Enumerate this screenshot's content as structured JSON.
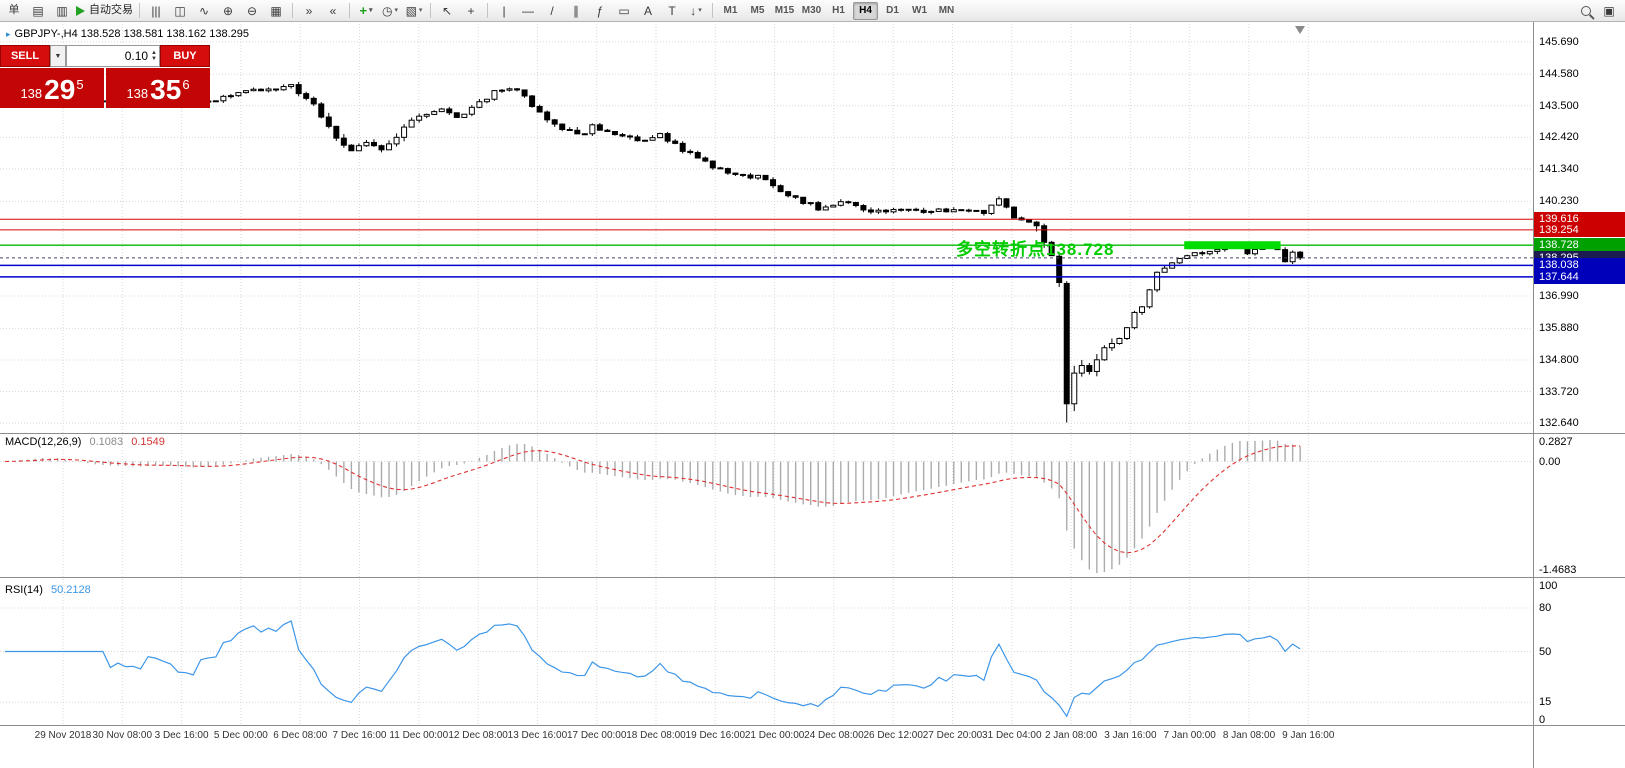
{
  "toolbar": {
    "groups": [
      {
        "items": [
          {
            "name": "new-order-button",
            "label": "单",
            "style": "text-btn"
          },
          {
            "name": "chart-window-icon",
            "glyph": "▤"
          },
          {
            "name": "profiles-icon",
            "glyph": "▥"
          },
          {
            "name": "autotrading-button",
            "label": "自动交易",
            "style": "autotrade"
          }
        ]
      },
      {
        "items": [
          {
            "name": "bar-chart-icon",
            "glyph": "|||"
          },
          {
            "name": "candlestick-chart-icon",
            "glyph": "◫"
          },
          {
            "name": "line-chart-icon",
            "glyph": "∿"
          },
          {
            "name": "zoom-in-icon",
            "glyph": "⊕"
          },
          {
            "name": "zoom-out-icon",
            "glyph": "⊖"
          },
          {
            "name": "tile-windows-icon",
            "glyph": "▦"
          }
        ]
      },
      {
        "items": [
          {
            "name": "auto-scroll-icon",
            "glyph": "»"
          },
          {
            "name": "chart-shift-icon",
            "glyph": "«"
          }
        ]
      },
      {
        "items": [
          {
            "name": "indicators-button",
            "glyph": "+",
            "style": "green",
            "caret": true
          },
          {
            "name": "periods-button",
            "glyph": "◷",
            "caret": true
          },
          {
            "name": "templates-button",
            "glyph": "▧",
            "caret": true
          }
        ]
      },
      {
        "items": [
          {
            "name": "cursor-icon",
            "glyph": "↖"
          },
          {
            "name": "crosshair-icon",
            "glyph": "+"
          }
        ]
      },
      {
        "items": [
          {
            "name": "vertical-line-icon",
            "glyph": "|"
          },
          {
            "name": "horizontal-line-icon",
            "glyph": "—"
          },
          {
            "name": "trendline-icon",
            "glyph": "/"
          },
          {
            "name": "equidistant-channel-icon",
            "glyph": "∥"
          },
          {
            "name": "fibonacci-icon",
            "glyph": "ƒ"
          },
          {
            "name": "shapes-icon",
            "glyph": "▭"
          },
          {
            "name": "text-icon",
            "glyph": "A"
          },
          {
            "name": "text-label-icon",
            "glyph": "T"
          },
          {
            "name": "arrows-icon",
            "glyph": "↓",
            "caret": true
          }
        ]
      },
      {
        "items": [
          {
            "name": "timeframe-m1-button",
            "label": "M1",
            "style": "tf"
          },
          {
            "name": "timeframe-m5-button",
            "label": "M5",
            "style": "tf"
          },
          {
            "name": "timeframe-m15-button",
            "label": "M15",
            "style": "tf"
          },
          {
            "name": "timeframe-m30-button",
            "label": "M30",
            "style": "tf"
          },
          {
            "name": "timeframe-h1-button",
            "label": "H1",
            "style": "tf"
          },
          {
            "name": "timeframe-h4-button",
            "label": "H4",
            "style": "tf",
            "active": true
          },
          {
            "name": "timeframe-d1-button",
            "label": "D1",
            "style": "tf"
          },
          {
            "name": "timeframe-w1-button",
            "label": "W1",
            "style": "tf"
          },
          {
            "name": "timeframe-mn-button",
            "label": "MN",
            "style": "tf"
          }
        ]
      }
    ],
    "right_items": [
      {
        "name": "search-icon",
        "magnifier": true
      },
      {
        "name": "data-window-icon",
        "glyph": "▣"
      }
    ]
  },
  "symbol_line": {
    "text": "GBPJPY-,H4  138.528 138.581 138.162 138.295"
  },
  "trade_panel": {
    "sell_label": "SELL",
    "buy_label": "BUY",
    "lot": "0.10",
    "sell_big": "138",
    "sell_pips": "29",
    "sell_sup": "5",
    "buy_big": "138",
    "buy_pips": "35",
    "buy_sup": "6"
  },
  "annotation": {
    "text": "多空转折点138.728",
    "color": "#00cc00"
  },
  "macd": {
    "name": "MACD(12,26,9)",
    "value_main": "0.1083",
    "value_signal": "0.1549",
    "axis": [
      "0.2827",
      "0.00",
      "-1.4683"
    ]
  },
  "rsi": {
    "name": "RSI(14)",
    "value": "50.2128",
    "axis": [
      "100",
      "80",
      "50",
      "15",
      "0"
    ]
  },
  "price_axis": {
    "gridlines": [
      "145.690",
      "144.580",
      "143.500",
      "142.420",
      "141.340",
      "140.230",
      "136.990",
      "135.880",
      "134.800",
      "133.720",
      "132.640"
    ],
    "tags": [
      {
        "label": "139.616",
        "price": 139.616,
        "bg": "#cc0000"
      },
      {
        "label": "139.254",
        "price": 139.254,
        "bg": "#cc0000"
      },
      {
        "label": "138.728",
        "price": 138.728,
        "bg": "#00a000"
      },
      {
        "label": "138.295",
        "price": 138.295,
        "bg": "#1c1c50"
      },
      {
        "label": "138.038",
        "price": 138.038,
        "bg": "#0000bb"
      },
      {
        "label": "137.644",
        "price": 137.644,
        "bg": "#0000bb"
      }
    ]
  },
  "time_axis": {
    "labels": [
      "29 Nov 2018",
      "30 Nov 08:00",
      "3 Dec 16:00",
      "5 Dec 00:00",
      "6 Dec 08:00",
      "7 Dec 16:00",
      "11 Dec 00:00",
      "12 Dec 08:00",
      "13 Dec 16:00",
      "17 Dec 00:00",
      "18 Dec 08:00",
      "19 Dec 16:00",
      "21 Dec 00:00",
      "24 Dec 08:00",
      "26 Dec 12:00",
      "27 Dec 20:00",
      "31 Dec 04:00",
      "2 Jan 08:00",
      "3 Jan 16:00",
      "7 Jan 00:00",
      "8 Jan 08:00",
      "9 Jan 16:00"
    ]
  },
  "chart_data": {
    "type": "candlestick",
    "symbol": "GBPJPY-",
    "timeframe": "H4",
    "ohlc": {
      "open": 138.528,
      "high": 138.581,
      "low": 138.162,
      "close": 138.295
    },
    "seed": 20190109,
    "candle_count": 173,
    "price_top": 146.3,
    "price_bottom": 132.3,
    "anchors": [
      [
        0,
        143.9
      ],
      [
        5,
        144.1
      ],
      [
        9,
        143.8
      ],
      [
        13,
        143.6
      ],
      [
        17,
        143.7
      ],
      [
        21,
        143.75
      ],
      [
        24,
        143.55
      ],
      [
        27,
        143.65
      ],
      [
        31,
        143.9
      ],
      [
        35,
        144.1
      ],
      [
        38,
        144.15
      ],
      [
        41,
        143.6
      ],
      [
        44,
        142.4
      ],
      [
        46,
        142.0
      ],
      [
        48,
        142.35
      ],
      [
        50,
        141.9
      ],
      [
        52,
        142.45
      ],
      [
        55,
        143.2
      ],
      [
        58,
        143.45
      ],
      [
        60,
        143.05
      ],
      [
        62,
        143.5
      ],
      [
        65,
        143.95
      ],
      [
        68,
        144.05
      ],
      [
        70,
        143.55
      ],
      [
        73,
        142.9
      ],
      [
        76,
        142.45
      ],
      [
        78,
        142.75
      ],
      [
        81,
        142.5
      ],
      [
        84,
        142.3
      ],
      [
        87,
        142.55
      ],
      [
        90,
        142.0
      ],
      [
        92,
        141.65
      ],
      [
        96,
        141.25
      ],
      [
        100,
        141.05
      ],
      [
        104,
        140.45
      ],
      [
        108,
        140.0
      ],
      [
        112,
        140.2
      ],
      [
        115,
        139.85
      ],
      [
        119,
        140.0
      ],
      [
        123,
        139.85
      ],
      [
        127,
        140.0
      ],
      [
        130,
        139.85
      ],
      [
        132,
        140.25
      ],
      [
        134,
        139.7
      ],
      [
        137,
        139.35
      ],
      [
        139,
        138.45
      ],
      [
        140,
        137.5
      ],
      [
        141,
        133.3
      ],
      [
        142,
        134.35
      ],
      [
        144,
        134.5
      ],
      [
        146,
        135.15
      ],
      [
        148,
        135.6
      ],
      [
        150,
        136.35
      ],
      [
        151,
        136.6
      ],
      [
        153,
        137.75
      ],
      [
        155,
        138.1
      ],
      [
        157,
        138.35
      ],
      [
        159,
        138.5
      ],
      [
        161,
        138.6
      ],
      [
        163,
        138.8
      ],
      [
        165,
        138.5
      ],
      [
        167,
        138.7
      ],
      [
        169,
        138.6
      ],
      [
        170,
        138.15
      ],
      [
        171,
        138.45
      ],
      [
        172,
        138.295
      ]
    ],
    "overrides": {
      "140": {
        "o": 138.35,
        "h": 138.42,
        "l": 137.3,
        "c": 137.45
      },
      "141": {
        "o": 137.42,
        "h": 137.5,
        "l": 132.66,
        "c": 133.3
      },
      "142": {
        "o": 133.3,
        "h": 134.6,
        "l": 133.05,
        "c": 134.35
      },
      "172": {
        "c": 138.295
      }
    },
    "vol_zones": [
      [
        42,
        53,
        0.24
      ],
      [
        70,
        80,
        0.2
      ],
      [
        137,
        147,
        0.38
      ]
    ],
    "hlines": [
      {
        "price": 139.616,
        "color": "#dd0000",
        "width": 1
      },
      {
        "price": 139.254,
        "color": "#dd0000",
        "width": 1
      },
      {
        "price": 138.728,
        "color": "#00bb00",
        "width": 1.3
      },
      {
        "price": 138.038,
        "color": "#0000cc",
        "width": 1.6
      },
      {
        "price": 137.644,
        "color": "#0000cc",
        "width": 1.6
      }
    ],
    "green_zone": {
      "start_index": 157,
      "end_index": 169,
      "price": 138.728,
      "color": "#00dd00"
    },
    "current_price": 138.295,
    "macd_range": [
      -1.4683,
      0.2827
    ],
    "rsi_levels": [
      80,
      50,
      15
    ]
  }
}
